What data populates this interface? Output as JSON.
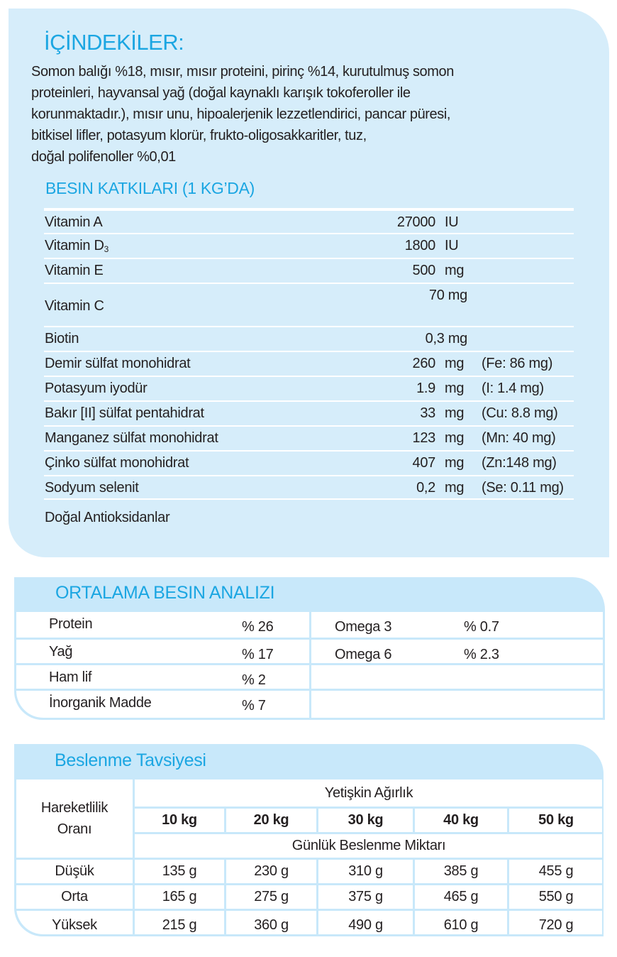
{
  "ingredients": {
    "title": "İÇİNDEKİLER:",
    "lines": [
      "Somon balığı %18, mısır, mısır proteini, pirinç %14, kurutulmuş somon",
      "proteinleri, hayvansal yağ (doğal kaynaklı karışık tokoferoller ile",
      "korunmaktadır.), mısır unu, hipoalerjenik lezzetlendirici, pancar püresi,",
      "bitkisel lifler, potasyum klorür, frukto-oligosakkaritler, tuz,",
      "doğal polifenoller %0,01"
    ]
  },
  "additives": {
    "title": "BESIN KATKILARI (1 KG’DA)",
    "rows": [
      {
        "name": "Vitamin A",
        "value": "27000",
        "unit": "IU",
        "extra": ""
      },
      {
        "name": "Vitamin D",
        "sub": "3",
        "value": "1800",
        "unit": "IU",
        "extra": ""
      },
      {
        "name": "Vitamin E",
        "value": "500",
        "unit": "mg",
        "extra": ""
      },
      {
        "name": "Vitamin C",
        "value": "70 mg",
        "unit": "",
        "extra": ""
      },
      {
        "name": "Biotin",
        "value": "0,3 mg",
        "unit": "",
        "extra": ""
      },
      {
        "name": "Demir sülfat monohidrat",
        "value": "260",
        "unit": "mg",
        "extra": "(Fe: 86 mg)"
      },
      {
        "name": "Potasyum iyodür",
        "value": "1.9",
        "unit": "mg",
        "extra": "(I: 1.4 mg)"
      },
      {
        "name": "Bakır [II] sülfat pentahidrat",
        "value": "33",
        "unit": "mg",
        "extra": "(Cu: 8.8 mg)"
      },
      {
        "name": "Manganez sülfat monohidrat",
        "value": "123",
        "unit": "mg",
        "extra": "(Mn: 40 mg)"
      },
      {
        "name": "Çinko sülfat monohidrat",
        "value": "407",
        "unit": "mg",
        "extra": "(Zn:148 mg)"
      },
      {
        "name": "Sodyum selenit",
        "value": "0,2",
        "unit": "mg",
        "extra": "(Se: 0.11 mg)"
      }
    ],
    "footer": "Doğal Antioksidanlar"
  },
  "analysis": {
    "title": "ORTALAMA BESIN ANALIZI",
    "left": [
      {
        "name": "Protein",
        "value": "% 26"
      },
      {
        "name": "Yağ",
        "value": "% 17"
      },
      {
        "name": "Ham lif",
        "value": "% 2"
      },
      {
        "name": "İnorganik Madde",
        "value": "% 7"
      }
    ],
    "right": [
      {
        "name": "Omega 3",
        "value": "% 0.7"
      },
      {
        "name": "Omega 6",
        "value": "% 2.3"
      }
    ]
  },
  "feeding": {
    "title": "Beslenme Tavsiyesi",
    "activity_header": [
      "Hareketlilik",
      "Oranı"
    ],
    "weight_header": "Yetişkin Ağırlık",
    "weights": [
      "10 kg",
      "20 kg",
      "30 kg",
      "40 kg",
      "50 kg"
    ],
    "daily_header": "Günlük Beslenme Miktarı",
    "rows": [
      {
        "level": "Düşük",
        "values": [
          "135 g",
          "230 g",
          "310 g",
          "385 g",
          "455 g"
        ]
      },
      {
        "level": "Orta",
        "values": [
          "165 g",
          "275 g",
          "375 g",
          "465 g",
          "550 g"
        ]
      },
      {
        "level": "Yüksek",
        "values": [
          "215 g",
          "360 g",
          "490 g",
          "610 g",
          "720 g"
        ]
      }
    ]
  },
  "colors": {
    "accent": "#1ba6e2",
    "panel": "#d6edfa",
    "header": "#c8e8fa"
  }
}
